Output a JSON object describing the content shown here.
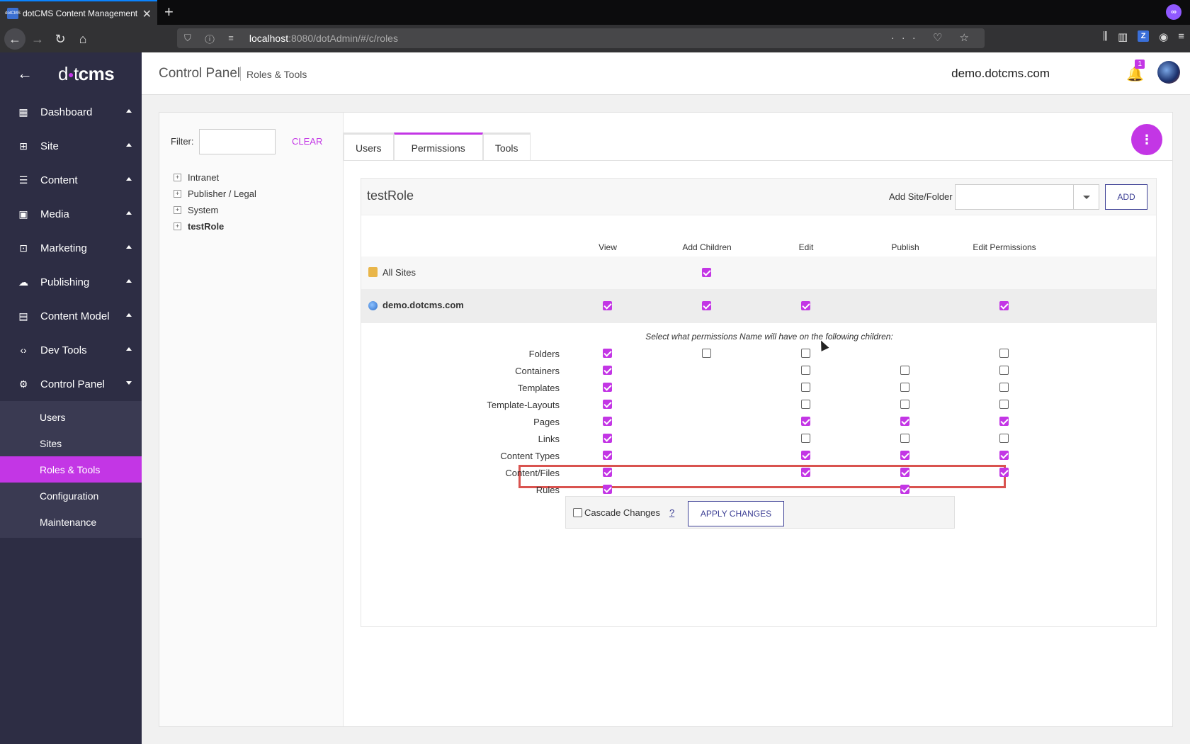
{
  "browser": {
    "tab_title": "dotCMS Content Management",
    "favicon_text": "dotCMS",
    "url_host": "localhost",
    "url_path": ":8080/dotAdmin/#/c/roles",
    "new_tab": "+",
    "close": "✕"
  },
  "sidebar": {
    "logo_pre": "d",
    "logo_dot": "●",
    "logo_t": "t",
    "logo_cms": "cms",
    "items": [
      {
        "label": "Dashboard",
        "icon": "dashboard-icon"
      },
      {
        "label": "Site",
        "icon": "site-icon"
      },
      {
        "label": "Content",
        "icon": "content-icon"
      },
      {
        "label": "Media",
        "icon": "media-icon"
      },
      {
        "label": "Marketing",
        "icon": "marketing-icon"
      },
      {
        "label": "Publishing",
        "icon": "publishing-icon"
      },
      {
        "label": "Content Model",
        "icon": "content-model-icon"
      },
      {
        "label": "Dev Tools",
        "icon": "dev-tools-icon"
      },
      {
        "label": "Control Panel",
        "icon": "control-panel-icon"
      }
    ],
    "submenu": [
      {
        "label": "Users"
      },
      {
        "label": "Sites"
      },
      {
        "label": "Roles & Tools",
        "active": true
      },
      {
        "label": "Configuration"
      },
      {
        "label": "Maintenance"
      }
    ],
    "accent": "#c336e5",
    "background": "#2d2d44"
  },
  "topbar": {
    "crumb_main": "Control Panel",
    "crumb_sub": "Roles & Tools",
    "site": "demo.dotcms.com",
    "notifications": "1"
  },
  "filter": {
    "label": "Filter:",
    "value": "",
    "clear": "CLEAR"
  },
  "tree": [
    {
      "label": "Intranet",
      "bold": false
    },
    {
      "label": "Publisher / Legal",
      "bold": false
    },
    {
      "label": "System",
      "bold": false
    },
    {
      "label": "testRole",
      "bold": true
    }
  ],
  "tabs": [
    {
      "label": "Users",
      "active": false
    },
    {
      "label": "Permissions",
      "active": true
    },
    {
      "label": "Tools",
      "active": false
    }
  ],
  "permissions": {
    "role": "testRole",
    "add_site_label": "Add Site/Folder",
    "add_site_value": "",
    "add_button": "ADD",
    "columns": [
      "View",
      "Add Children",
      "Edit",
      "Publish",
      "Edit Permissions"
    ],
    "all_sites": {
      "label": "All Sites",
      "checks": [
        null,
        true,
        null,
        null,
        null
      ]
    },
    "site_row": {
      "label": "demo.dotcms.com",
      "checks": [
        true,
        true,
        true,
        null,
        true
      ]
    },
    "children_note": "Select what permissions Name will have on the following children:",
    "children": [
      {
        "label": "Folders",
        "checks": [
          true,
          false,
          false,
          null,
          false
        ]
      },
      {
        "label": "Containers",
        "checks": [
          true,
          null,
          false,
          false,
          false
        ]
      },
      {
        "label": "Templates",
        "checks": [
          true,
          null,
          false,
          false,
          false
        ]
      },
      {
        "label": "Template-Layouts",
        "checks": [
          true,
          null,
          false,
          false,
          false
        ]
      },
      {
        "label": "Pages",
        "checks": [
          true,
          null,
          true,
          true,
          true
        ]
      },
      {
        "label": "Links",
        "checks": [
          true,
          null,
          false,
          false,
          false
        ]
      },
      {
        "label": "Content Types",
        "checks": [
          true,
          null,
          true,
          true,
          true
        ]
      },
      {
        "label": "Content/Files",
        "checks": [
          true,
          null,
          true,
          true,
          true
        ]
      },
      {
        "label": "Rules",
        "checks": [
          true,
          null,
          null,
          true,
          null
        ]
      }
    ],
    "cascade_label": "Cascade Changes",
    "help": "?",
    "apply_button": "APPLY CHANGES"
  }
}
